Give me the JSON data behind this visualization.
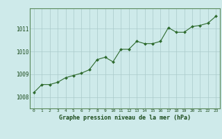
{
  "title": "Graphe pression niveau de la mer (hPa)",
  "x_values": [
    0,
    1,
    2,
    3,
    4,
    5,
    6,
    7,
    8,
    9,
    10,
    11,
    12,
    13,
    14,
    15,
    16,
    17,
    18,
    19,
    20,
    21,
    22,
    23
  ],
  "y_values": [
    1008.2,
    1008.55,
    1008.55,
    1008.65,
    1008.85,
    1008.95,
    1009.05,
    1009.2,
    1009.65,
    1009.75,
    1009.55,
    1010.1,
    1010.1,
    1010.45,
    1010.35,
    1010.35,
    1010.45,
    1011.05,
    1010.85,
    1010.85,
    1011.1,
    1011.15,
    1011.25,
    1011.55
  ],
  "ylim": [
    1007.5,
    1011.9
  ],
  "xlim": [
    -0.5,
    23.5
  ],
  "yticks": [
    1008,
    1009,
    1010,
    1011
  ],
  "xticks": [
    0,
    1,
    2,
    3,
    4,
    5,
    6,
    7,
    8,
    9,
    10,
    11,
    12,
    13,
    14,
    15,
    16,
    17,
    18,
    19,
    20,
    21,
    22,
    23
  ],
  "line_color": "#2d6a2d",
  "marker_color": "#2d6a2d",
  "bg_color": "#ceeaea",
  "grid_color": "#aacaca",
  "title_color": "#1a4a1a",
  "tick_color": "#1a4a1a",
  "border_color": "#5a8a5a"
}
